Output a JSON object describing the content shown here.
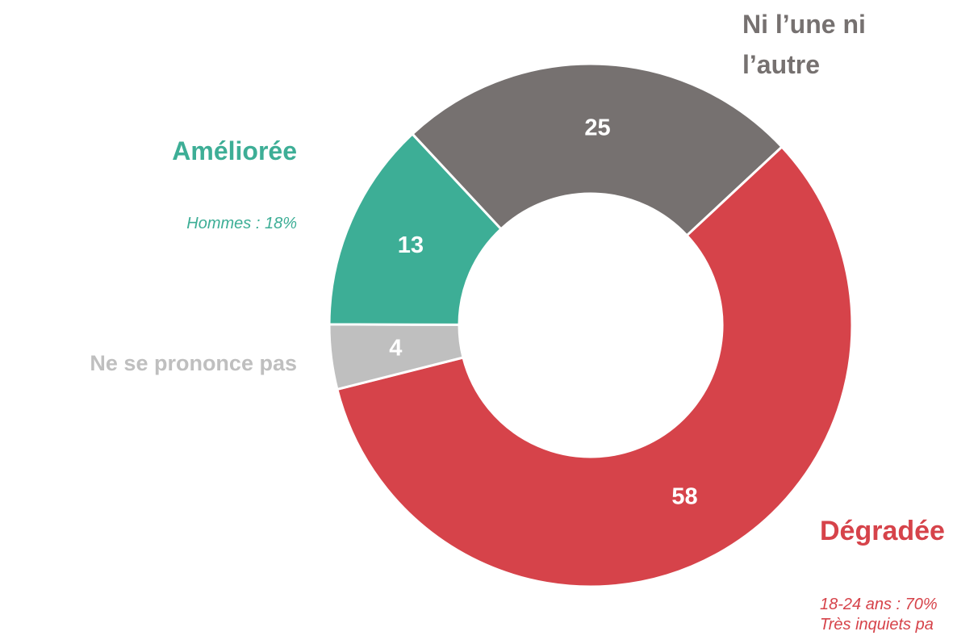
{
  "chart_data": {
    "type": "donut",
    "categories": [
      "Ni l’une ni l’autre",
      "Dégradée",
      "Ne se prononce pas",
      "Améliorée"
    ],
    "values": [
      25,
      58,
      4,
      13
    ],
    "colors": [
      "#767170",
      "#d6434a",
      "#bfbfbf",
      "#3dae96"
    ],
    "annotations": [
      "Hommes : 18%",
      "18-24 ans : 70%",
      "Très inquiets pa"
    ]
  }
}
